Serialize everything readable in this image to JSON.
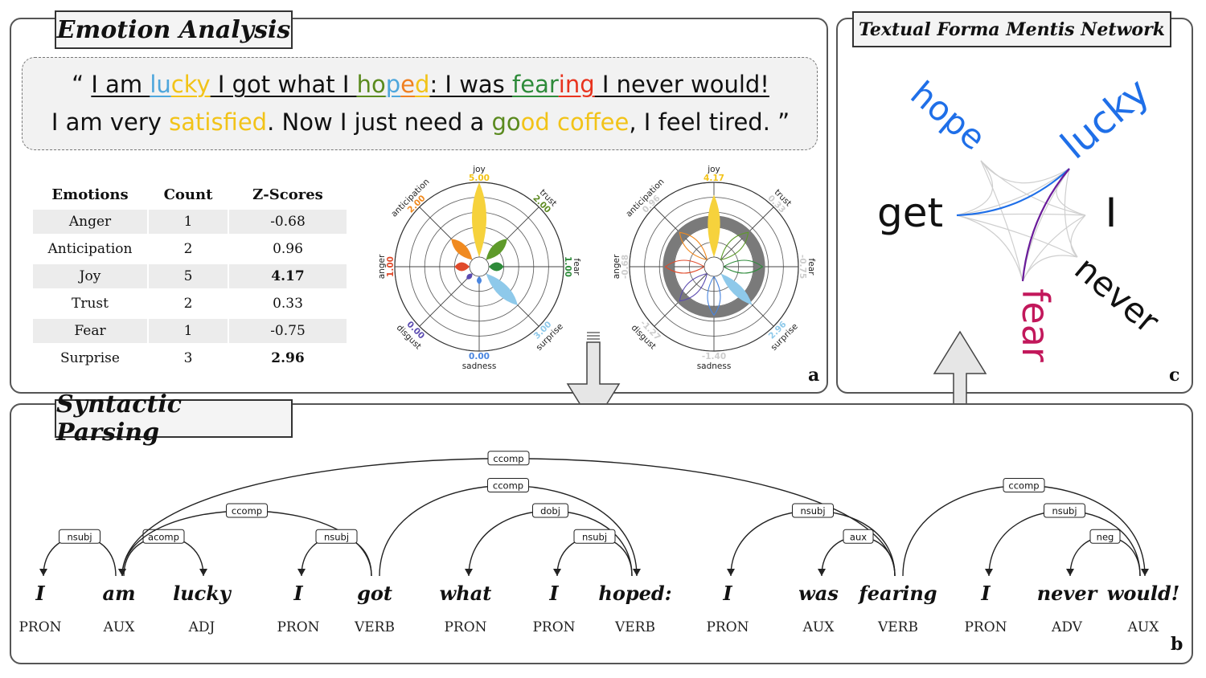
{
  "panels": {
    "emotion": {
      "title": "Emotion Analysis",
      "letter": "a"
    },
    "network": {
      "title": "Textual Forma Mentis Network",
      "letter": "c"
    },
    "parsing": {
      "title": "Syntactic Parsing",
      "letter": "b"
    }
  },
  "quote": {
    "open": "“ ",
    "line1": [
      {
        "t": "I am ",
        "c": "#111111"
      },
      {
        "t": "lu",
        "c": "#4ea6dc"
      },
      {
        "t": "cky",
        "c": "#f2c318"
      },
      {
        "t": " I got what I ",
        "c": "#111111"
      },
      {
        "t": "ho",
        "c": "#5a8a1e"
      },
      {
        "t": "p",
        "c": "#4ea6dc"
      },
      {
        "t": "e",
        "c": "#f08020"
      },
      {
        "t": "d",
        "c": "#f2c318"
      },
      {
        "t": ": I was ",
        "c": "#111111"
      },
      {
        "t": "fear",
        "c": "#2e8b3a"
      },
      {
        "t": "ing",
        "c": "#e8331e"
      },
      {
        "t": " I never would!",
        "c": "#111111"
      }
    ],
    "line2": [
      {
        "t": "I am very ",
        "c": "#111111"
      },
      {
        "t": "satisfied",
        "c": "#f2c318"
      },
      {
        "t": ". Now I just need a ",
        "c": "#111111"
      },
      {
        "t": "go",
        "c": "#5a8a1e"
      },
      {
        "t": "od",
        "c": "#f2c318"
      },
      {
        "t": " ",
        "c": "#111111"
      },
      {
        "t": "coffee",
        "c": "#f2c318"
      },
      {
        "t": ", I feel tired. ”",
        "c": "#111111"
      }
    ]
  },
  "table": {
    "headers": [
      "Emotions",
      "Count",
      "Z-Scores"
    ],
    "rows": [
      {
        "emotion": "Anger",
        "count": "1",
        "z": "-0.68",
        "bold": false
      },
      {
        "emotion": "Anticipation",
        "count": "2",
        "z": "0.96",
        "bold": false
      },
      {
        "emotion": "Joy",
        "count": "5",
        "z": "4.17",
        "bold": true
      },
      {
        "emotion": "Trust",
        "count": "2",
        "z": "0.33",
        "bold": false
      },
      {
        "emotion": "Fear",
        "count": "1",
        "z": "-0.75",
        "bold": false
      },
      {
        "emotion": "Surprise",
        "count": "3",
        "z": "2.96",
        "bold": true
      }
    ]
  },
  "chart_data": [
    {
      "type": "radar",
      "axes": [
        "joy",
        "trust",
        "fear",
        "surprise",
        "sadness",
        "disgust",
        "anger",
        "anticipation"
      ],
      "values": [
        5.0,
        2.0,
        1.0,
        3.0,
        0.0,
        0.0,
        1.0,
        2.0
      ],
      "value_labels": [
        "5.00",
        "2.00",
        "1.00",
        "3.00",
        "0.00",
        "0.00",
        "1.00",
        "2.00"
      ],
      "colors": [
        "#f6d23c",
        "#5e9a2a",
        "#2e8b3a",
        "#8ec9ea",
        "#4a86e0",
        "#5a4ab0",
        "#e04a2a",
        "#f08a20"
      ],
      "label_colors": [
        "#f2c318",
        "#5e8a22",
        "#2e8b3a",
        "#8ec9ea",
        "#4a86e0",
        "#5a4ab0",
        "#e04a2a",
        "#f08a20"
      ]
    },
    {
      "type": "radar",
      "axes": [
        "joy",
        "trust",
        "fear",
        "surprise",
        "sadness",
        "disgust",
        "anger",
        "anticipation"
      ],
      "values": [
        4.17,
        0.33,
        -0.75,
        2.96,
        -1.4,
        -1.27,
        -0.68,
        0.96
      ],
      "value_labels": [
        "4.17",
        "0.33",
        "-0.75",
        "2.96",
        "-1.40",
        "-1.27",
        "-0.68",
        "0.96"
      ],
      "colors": [
        "#f6d23c",
        "#5e9a2a",
        "#2e8b3a",
        "#8ec9ea",
        "#4a86e0",
        "#5a4ab0",
        "#e04a2a",
        "#f08a20"
      ],
      "label_colors": [
        "#f2c318",
        "#cccccc",
        "#cccccc",
        "#8ec9ea",
        "#cccccc",
        "#cccccc",
        "#cccccc",
        "#cccccc"
      ]
    }
  ],
  "network": {
    "words": [
      {
        "text": "hope",
        "color": "#1f6fe8"
      },
      {
        "text": "lucky",
        "color": "#1f6fe8"
      },
      {
        "text": "get",
        "color": "#111111"
      },
      {
        "text": "I",
        "color": "#111111"
      },
      {
        "text": "never",
        "color": "#111111"
      },
      {
        "text": "fear",
        "color": "#c2185b"
      }
    ]
  },
  "parse": {
    "tokens": [
      {
        "word": "I",
        "pos": "PRON"
      },
      {
        "word": "am",
        "pos": "AUX"
      },
      {
        "word": "lucky",
        "pos": "ADJ"
      },
      {
        "word": "I",
        "pos": "PRON"
      },
      {
        "word": "got",
        "pos": "VERB"
      },
      {
        "word": "what",
        "pos": "PRON"
      },
      {
        "word": "I",
        "pos": "PRON"
      },
      {
        "word": "hoped:",
        "pos": "VERB"
      },
      {
        "word": "I",
        "pos": "PRON"
      },
      {
        "word": "was",
        "pos": "AUX"
      },
      {
        "word": "fearing",
        "pos": "VERB"
      },
      {
        "word": "I",
        "pos": "PRON"
      },
      {
        "word": "never",
        "pos": "ADV"
      },
      {
        "word": "would!",
        "pos": "AUX"
      }
    ],
    "arcs": [
      {
        "label": "nsubj",
        "from": 1,
        "to": 0
      },
      {
        "label": "acomp",
        "from": 1,
        "to": 2
      },
      {
        "label": "ccomp",
        "from": 4,
        "to": 1
      },
      {
        "label": "nsubj",
        "from": 4,
        "to": 3
      },
      {
        "label": "ccomp",
        "from": 10,
        "to": 1
      },
      {
        "label": "ccomp",
        "from": 4,
        "to": 7
      },
      {
        "label": "dobj",
        "from": 7,
        "to": 5
      },
      {
        "label": "nsubj",
        "from": 7,
        "to": 6
      },
      {
        "label": "nsubj",
        "from": 10,
        "to": 8
      },
      {
        "label": "aux",
        "from": 10,
        "to": 9
      },
      {
        "label": "ccomp",
        "from": 10,
        "to": 13
      },
      {
        "label": "nsubj",
        "from": 13,
        "to": 11
      },
      {
        "label": "neg",
        "from": 13,
        "to": 12
      }
    ]
  }
}
